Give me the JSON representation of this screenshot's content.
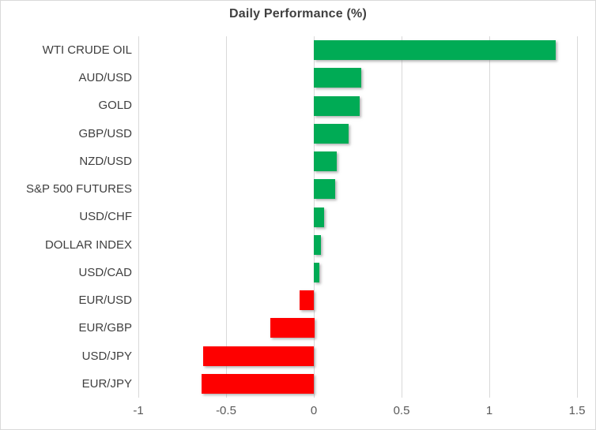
{
  "title": "Daily Performance (%)",
  "colors": {
    "positive_bar": "#00ab55",
    "negative_bar": "#fe0000",
    "gridline": "#d9d9d9",
    "title_text": "#404040",
    "category_text": "#3f3f3f",
    "tick_text": "#595959",
    "frame_border": "#d9d9d9",
    "background": "#ffffff"
  },
  "chart_data": {
    "type": "bar",
    "orientation": "horizontal",
    "title": "Daily Performance (%)",
    "categories": [
      "WTI CRUDE OIL",
      "AUD/USD",
      "GOLD",
      "GBP/USD",
      "NZD/USD",
      "S&P 500 FUTURES",
      "USD/CHF",
      "DOLLAR INDEX",
      "USD/CAD",
      "EUR/USD",
      "EUR/GBP",
      "USD/JPY",
      "EUR/JPY"
    ],
    "values": [
      1.38,
      0.27,
      0.26,
      0.2,
      0.13,
      0.12,
      0.06,
      0.04,
      0.03,
      -0.08,
      -0.25,
      -0.63,
      -0.64
    ],
    "xlabel": "",
    "ylabel": "",
    "xlim": [
      -1,
      1.5
    ],
    "xticks": [
      -1,
      -0.5,
      0,
      0.5,
      1,
      1.5
    ],
    "xtick_labels": [
      "-1",
      "-0.5",
      "0",
      "0.5",
      "1",
      "1.5"
    ],
    "grid": true,
    "legend": false
  }
}
